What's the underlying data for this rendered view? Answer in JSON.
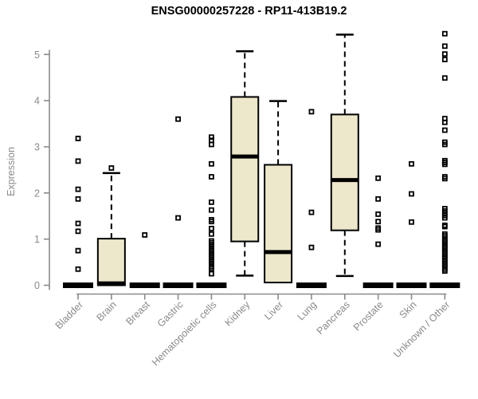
{
  "title": "ENSG00000257228 - RP11-413B19.2",
  "colors": {
    "box_fill": "#EDE7CB",
    "box_stroke": "#000000",
    "median": "#000000",
    "whisker": "#000000",
    "outlier": "#000000",
    "axis": "#8a8a8a",
    "tick_label": "#8a8a8a",
    "title": "#000000"
  },
  "chart_data": {
    "type": "boxplot",
    "title": "ENSG00000257228 - RP11-413B19.2",
    "xlabel": "",
    "ylabel": "Expression",
    "ylim": [
      0,
      5.5
    ],
    "yticks": [
      0,
      1,
      2,
      3,
      4,
      5
    ],
    "grid": false,
    "legend": "none",
    "categories": [
      "Bladder",
      "Brain",
      "Breast",
      "Gastric",
      "Hematopoietic cells",
      "Kidney",
      "Liver",
      "Lung",
      "Pancreas",
      "Prostate",
      "Skin",
      "Unknown / Other"
    ],
    "boxes": [
      {
        "category": "Bladder",
        "q1": 0,
        "median": 0,
        "q3": 0,
        "whisker_low": null,
        "whisker_high": null,
        "collapsed": true,
        "outliers": [
          3.18,
          2.69,
          2.08,
          1.87,
          1.34,
          1.17,
          0.75,
          0.35
        ]
      },
      {
        "category": "Brain",
        "q1": 0,
        "median": 0.04,
        "q3": 1.01,
        "whisker_low": null,
        "whisker_high": 2.43,
        "collapsed": false,
        "outliers": [
          2.54
        ]
      },
      {
        "category": "Breast",
        "q1": 0,
        "median": 0,
        "q3": 0,
        "whisker_low": null,
        "whisker_high": null,
        "collapsed": true,
        "outliers": [
          1.09
        ]
      },
      {
        "category": "Gastric",
        "q1": 0,
        "median": 0,
        "q3": 0,
        "whisker_low": null,
        "whisker_high": null,
        "collapsed": true,
        "outliers": [
          3.6,
          1.46
        ]
      },
      {
        "category": "Hematopoietic cells",
        "q1": 0,
        "median": 0,
        "q3": 0,
        "whisker_low": null,
        "whisker_high": null,
        "collapsed": true,
        "outliers": [
          3.21,
          3.14,
          3.05,
          2.63,
          2.35,
          1.8,
          1.63,
          1.42,
          1.38,
          1.23,
          1.11,
          0.96,
          0.92,
          0.88,
          0.84,
          0.8,
          0.76,
          0.72,
          0.68,
          0.64,
          0.6,
          0.56,
          0.52,
          0.48,
          0.44,
          0.4,
          0.36,
          0.25
        ]
      },
      {
        "category": "Kidney",
        "q1": 0.95,
        "median": 2.79,
        "q3": 4.08,
        "whisker_low": 0.21,
        "whisker_high": 5.07,
        "collapsed": false,
        "outliers": []
      },
      {
        "category": "Liver",
        "q1": 0.06,
        "median": 0.72,
        "q3": 2.61,
        "whisker_low": null,
        "whisker_high": 3.99,
        "collapsed": false,
        "outliers": []
      },
      {
        "category": "Lung",
        "q1": 0,
        "median": 0,
        "q3": 0,
        "whisker_low": null,
        "whisker_high": null,
        "collapsed": true,
        "outliers": [
          3.76,
          1.58,
          0.82
        ]
      },
      {
        "category": "Pancreas",
        "q1": 1.19,
        "median": 2.28,
        "q3": 3.7,
        "whisker_low": 0.2,
        "whisker_high": 5.43,
        "collapsed": false,
        "outliers": []
      },
      {
        "category": "Prostate",
        "q1": 0,
        "median": 0,
        "q3": 0,
        "whisker_low": null,
        "whisker_high": null,
        "collapsed": true,
        "outliers": [
          2.32,
          1.87,
          1.54,
          1.38,
          1.24,
          1.2,
          0.89
        ]
      },
      {
        "category": "Skin",
        "q1": 0,
        "median": 0,
        "q3": 0,
        "whisker_low": null,
        "whisker_high": null,
        "collapsed": true,
        "outliers": [
          2.63,
          1.98,
          1.37
        ]
      },
      {
        "category": "Unknown / Other",
        "q1": 0,
        "median": 0,
        "q3": 0,
        "whisker_low": null,
        "whisker_high": null,
        "collapsed": true,
        "outliers": [
          5.45,
          5.18,
          5.01,
          4.89,
          4.49,
          3.61,
          3.53,
          3.36,
          3.1,
          3.05,
          2.7,
          2.66,
          2.62,
          2.35,
          2.31,
          1.66,
          1.61,
          1.56,
          1.51,
          1.46,
          1.3,
          1.27,
          1.11,
          1.07,
          1.03,
          0.99,
          0.95,
          0.91,
          0.87,
          0.83,
          0.79,
          0.75,
          0.71,
          0.67,
          0.63,
          0.59,
          0.55,
          0.51,
          0.47,
          0.43,
          0.39,
          0.35,
          0.31
        ]
      }
    ]
  }
}
